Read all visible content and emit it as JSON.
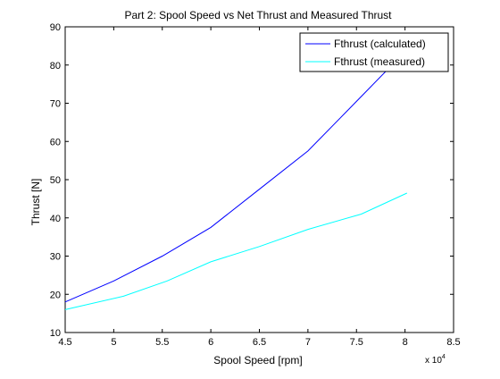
{
  "chart_data": {
    "type": "line",
    "title": "Part 2: Spool Speed vs Net Thrust and Measured Thrust",
    "xlabel": "Spool Speed [rpm]",
    "ylabel": "Thrust [N]",
    "x_multiplier_base": "x 10",
    "x_multiplier_exp": "4",
    "xlim": [
      45000,
      85000
    ],
    "ylim": [
      10,
      90
    ],
    "xticks": [
      45000,
      50000,
      55000,
      60000,
      65000,
      70000,
      75000,
      80000,
      85000
    ],
    "xtick_labels": [
      "4.5",
      "5",
      "5.5",
      "6",
      "6.5",
      "7",
      "7.5",
      "8",
      "8.5"
    ],
    "yticks": [
      10,
      20,
      30,
      40,
      50,
      60,
      70,
      80,
      90
    ],
    "ytick_labels": [
      "10",
      "20",
      "30",
      "40",
      "50",
      "60",
      "70",
      "80",
      "90"
    ],
    "grid": false,
    "legend_position": "top-right",
    "series": [
      {
        "name": "Fthrust (calculated)",
        "color": "#0000ff",
        "x": [
          45000,
          50000,
          55000,
          60000,
          65000,
          70000,
          75000,
          80000
        ],
        "y": [
          18.0,
          23.5,
          30.0,
          37.5,
          47.5,
          57.5,
          70.5,
          83.5
        ]
      },
      {
        "name": "Fthrust (measured)",
        "color": "#00ffff",
        "x": [
          45000,
          51000,
          55500,
          60000,
          65000,
          70000,
          75500,
          80200
        ],
        "y": [
          16.0,
          19.5,
          23.5,
          28.5,
          32.5,
          37.0,
          41.0,
          46.5
        ]
      }
    ]
  }
}
